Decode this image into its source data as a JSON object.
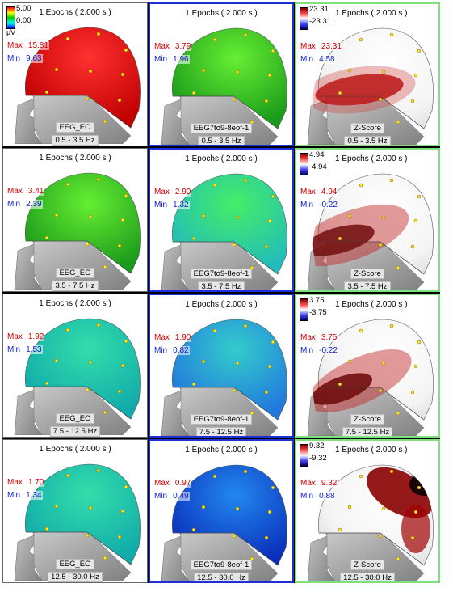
{
  "scale": {
    "top": "5.00",
    "bottom": "0.00",
    "unit": "μV"
  },
  "panels": [
    {
      "epochs": "1 Epochs ( 2.000 s )",
      "max_label": "Max",
      "max": "15.81",
      "min_label": "Min",
      "min": "9.63",
      "condition": "EEG_EO",
      "band": "0.5 - 3.5 Hz",
      "map": "red"
    },
    {
      "epochs": "1 Epochs ( 2.000 s )",
      "max_label": "Max",
      "max": "3.79",
      "min_label": "Min",
      "min": "1.96",
      "condition": "EEG7to9-8eof-1",
      "band": "0.5 - 3.5 Hz",
      "map": "green"
    },
    {
      "epochs": "1 Epochs ( 2.000 s )",
      "max_label": "Max",
      "max": "23.31",
      "min_label": "Min",
      "min": "4.58",
      "condition": "Z-Score",
      "band": "0.5 - 3.5 Hz",
      "map": "z1",
      "cb_top": "23.31",
      "cb_bottom": "-23.31"
    },
    {
      "epochs": "1 Epochs ( 2.000 s )",
      "max_label": "Max",
      "max": "3.41",
      "min_label": "Min",
      "min": "2.39",
      "condition": "EEG_EO",
      "band": "3.5 - 7.5 Hz",
      "map": "green"
    },
    {
      "epochs": "1 Epochs ( 2.000 s )",
      "max_label": "Max",
      "max": "2.90",
      "min_label": "Min",
      "min": "1.32",
      "condition": "EEG7to9-8eof-1",
      "band": "3.5 - 7.5 Hz",
      "map": "greencyan"
    },
    {
      "epochs": "1 Epochs ( 2.000 s )",
      "max_label": "Max",
      "max": "4.94",
      "min_label": "Min",
      "min": "-0.22",
      "condition": "Z-Score",
      "band": "3.5 - 7.5 Hz",
      "map": "z2",
      "cb_top": "4.94",
      "cb_bottom": "-4.94"
    },
    {
      "epochs": "1 Epochs ( 2.000 s )",
      "max_label": "Max",
      "max": "1.92",
      "min_label": "Min",
      "min": "1.53",
      "condition": "EEG_EO",
      "band": "7.5 - 12.5 Hz",
      "map": "teal"
    },
    {
      "epochs": "1 Epochs ( 2.000 s )",
      "max_label": "Max",
      "max": "1.90",
      "min_label": "Min",
      "min": "0.82",
      "condition": "EEG7to9-8eof-1",
      "band": "7.5 - 12.5 Hz",
      "map": "tealblue"
    },
    {
      "epochs": "1 Epochs ( 2.000 s )",
      "max_label": "Max",
      "max": "3.75",
      "min_label": "Min",
      "min": "-0.22",
      "condition": "Z-Score",
      "band": "7.5 - 12.5 Hz",
      "map": "z3",
      "cb_top": "3.75",
      "cb_bottom": "-3.75"
    },
    {
      "epochs": "1 Epochs ( 2.000 s )",
      "max_label": "Max",
      "max": "1.70",
      "min_label": "Min",
      "min": "1.34",
      "condition": "EEG_EO",
      "band": "12.5 - 30.0 Hz",
      "map": "teal"
    },
    {
      "epochs": "1 Epochs ( 2.000 s )",
      "max_label": "Max",
      "max": "0.97",
      "min_label": "Min",
      "min": "0.49",
      "condition": "EEG7to9-8eof-1",
      "band": "12.5 - 30.0 Hz",
      "map": "blue"
    },
    {
      "epochs": "1 Epochs ( 2.000 s )",
      "max_label": "Max",
      "max": "9.32",
      "min_label": "Min",
      "min": "0.88",
      "condition": "Z-Score",
      "band": "12.5 - 30.0 Hz",
      "map": "z4",
      "cb_top": "9.32",
      "cb_bottom": "-9.32"
    }
  ],
  "colors": {
    "red": [
      "#ff3030",
      "#c00000"
    ],
    "green": [
      "#66ee33",
      "#1a9a1a"
    ],
    "greencyan": [
      "#44ee66",
      "#22bbbb"
    ],
    "teal": [
      "#33ddaa",
      "#11aaaa"
    ],
    "tealblue": [
      "#33cccc",
      "#2277dd"
    ],
    "blue": [
      "#2288ee",
      "#0a2fbb"
    ]
  }
}
